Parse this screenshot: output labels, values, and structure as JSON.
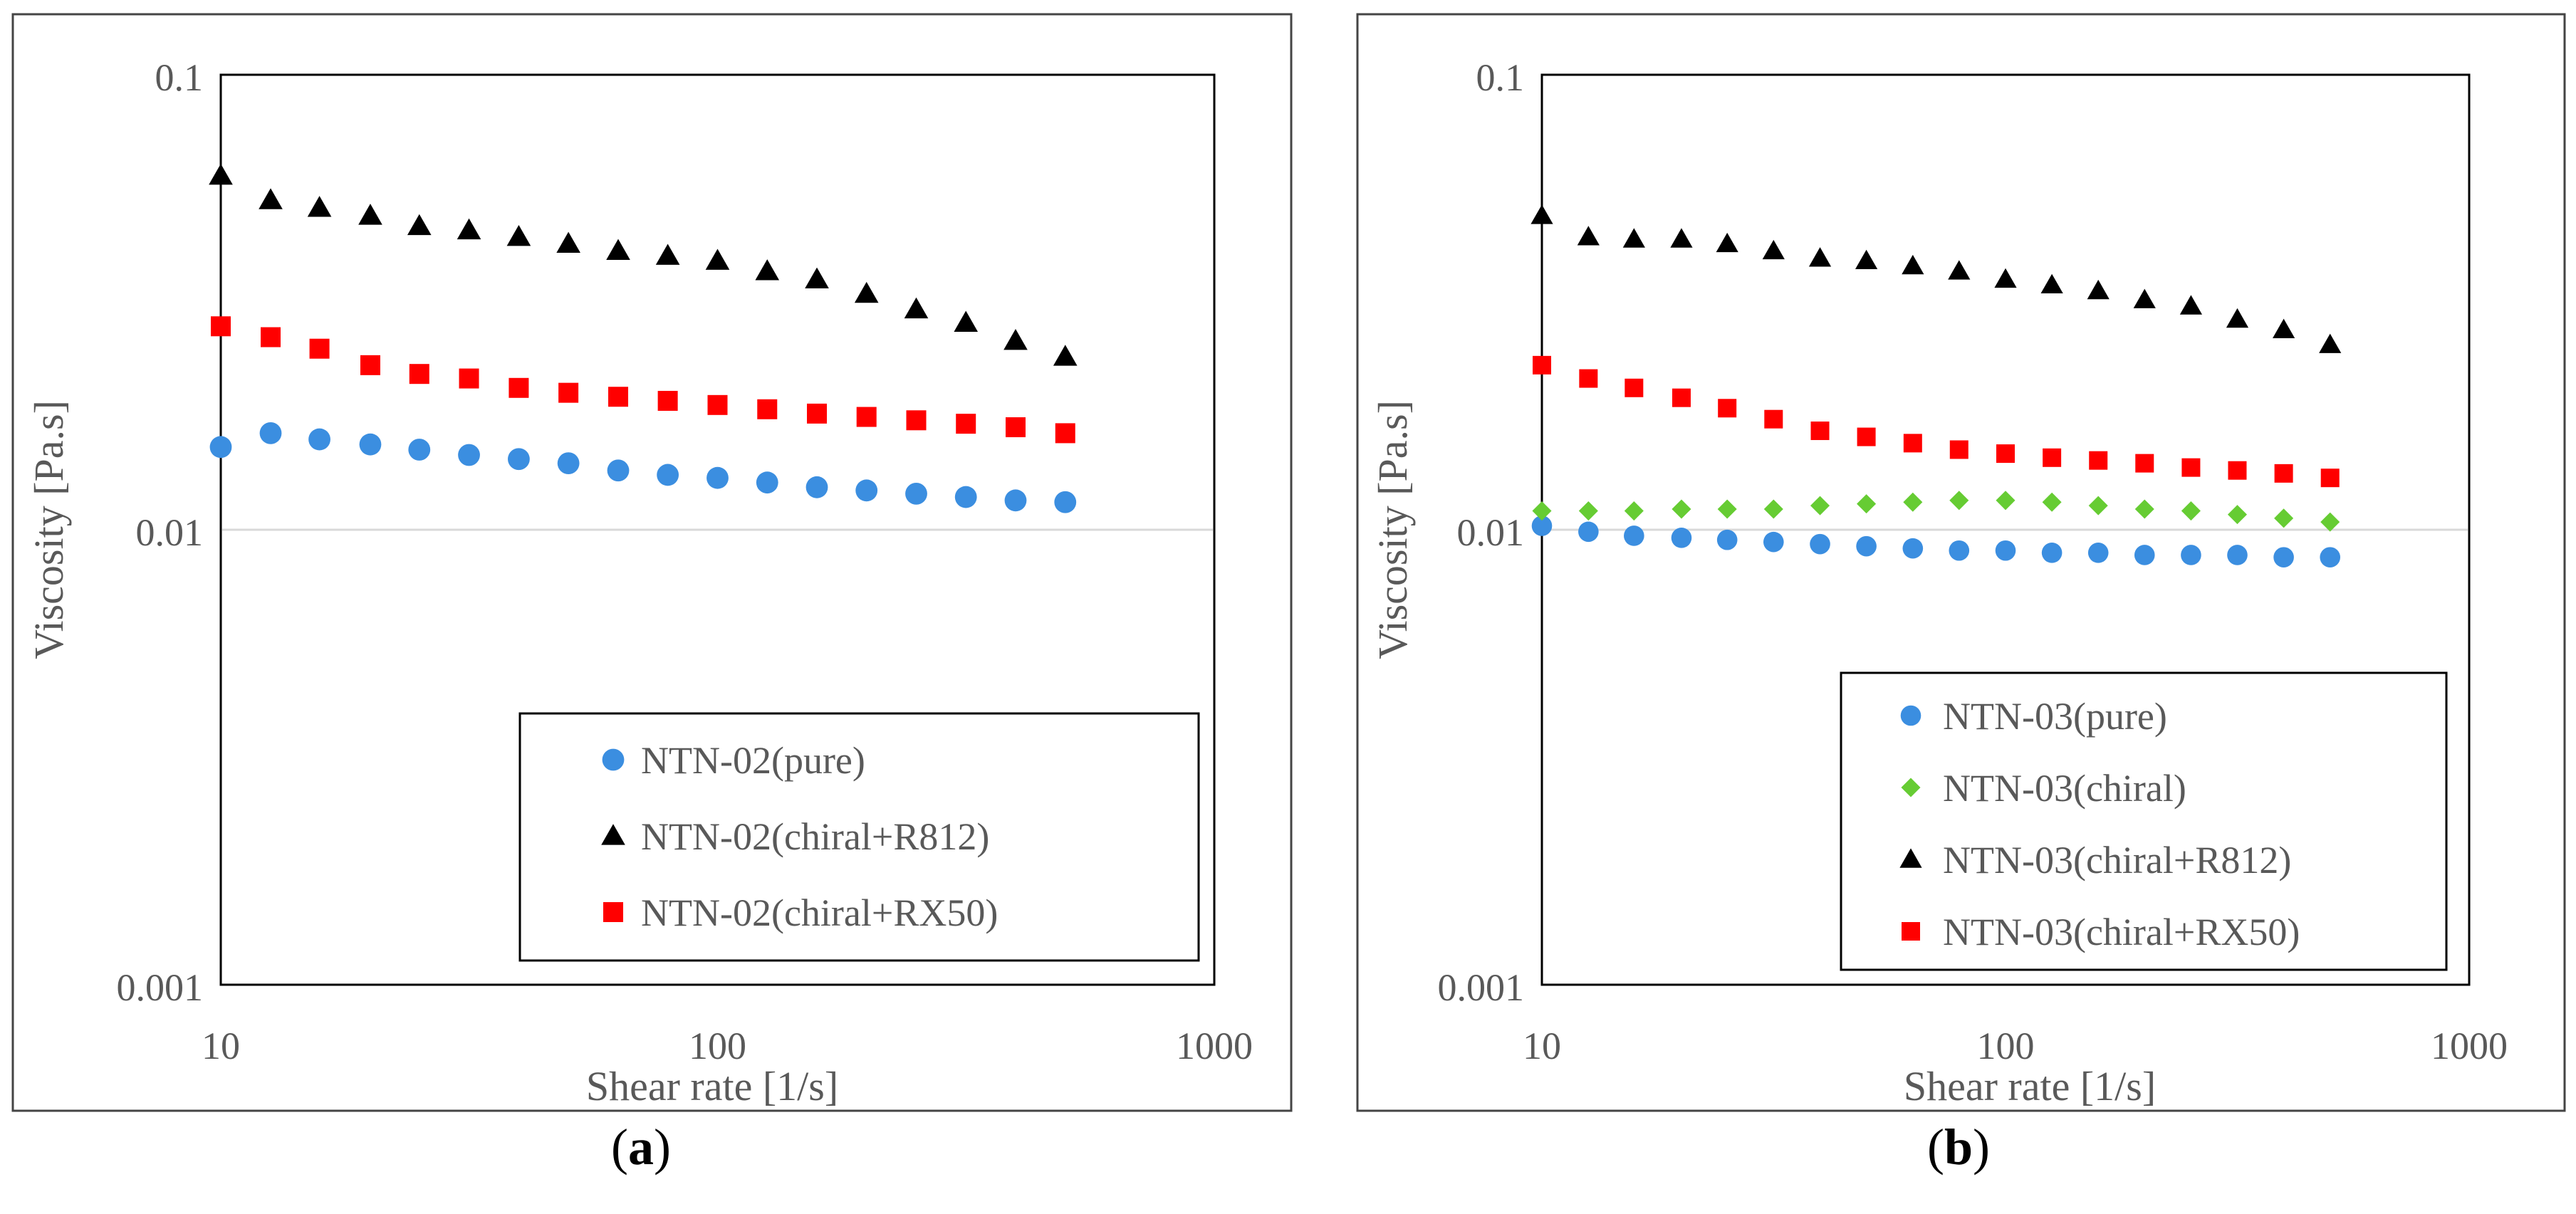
{
  "chart_data": [
    {
      "type": "scatter",
      "panel_label": "a",
      "title": "",
      "xlabel": "Shear rate [1/s]",
      "ylabel": "Viscosity [Pa.s]",
      "xscale": "log",
      "yscale": "log",
      "xlim": [
        10,
        1000
      ],
      "ylim": [
        0.001,
        0.1
      ],
      "x_ticks": [
        "10",
        "100",
        "1000"
      ],
      "y_ticks": [
        "0.1",
        "0.01",
        "0.001"
      ],
      "gridlines": [
        0.01
      ],
      "legend_position": "bottom-right",
      "x": [
        10,
        12.6,
        15.8,
        20,
        25.1,
        31.6,
        39.8,
        50.1,
        63.1,
        79.4,
        100,
        125.9,
        158.5,
        199.5,
        251.2,
        316.2,
        398.1,
        501.2
      ],
      "series": [
        {
          "name": "NTN-02(pure)",
          "marker": "circle",
          "color": "#3b8ee0",
          "values": [
            0.0152,
            0.0163,
            0.0158,
            0.0154,
            0.015,
            0.0146,
            0.0143,
            0.014,
            0.0135,
            0.0132,
            0.013,
            0.0127,
            0.0124,
            0.0122,
            0.012,
            0.0118,
            0.0116,
            0.0115
          ]
        },
        {
          "name": "NTN-02(chiral+R812)",
          "marker": "triangle",
          "color": "#000000",
          "values": [
            0.06,
            0.053,
            0.051,
            0.049,
            0.0465,
            0.0455,
            0.044,
            0.0425,
            0.041,
            0.04,
            0.039,
            0.037,
            0.0355,
            0.033,
            0.0305,
            0.0285,
            0.026,
            0.024
          ]
        },
        {
          "name": "NTN-02(chiral+RX50)",
          "marker": "square",
          "color": "#ff0000",
          "values": [
            0.028,
            0.0265,
            0.025,
            0.023,
            0.022,
            0.0215,
            0.0205,
            0.02,
            0.0196,
            0.0192,
            0.0188,
            0.0184,
            0.018,
            0.0177,
            0.0174,
            0.0171,
            0.0168,
            0.0163
          ]
        }
      ]
    },
    {
      "type": "scatter",
      "panel_label": "b",
      "title": "",
      "xlabel": "Shear rate [1/s]",
      "ylabel": "Viscosity [Pa.s]",
      "xscale": "log",
      "yscale": "log",
      "xlim": [
        10,
        1000
      ],
      "ylim": [
        0.001,
        0.1
      ],
      "x_ticks": [
        "10",
        "100",
        "1000"
      ],
      "y_ticks": [
        "0.1",
        "0.01",
        "0.001"
      ],
      "gridlines": [
        0.01
      ],
      "legend_position": "bottom-right",
      "x": [
        10,
        12.6,
        15.8,
        20,
        25.1,
        31.6,
        39.8,
        50.1,
        63.1,
        79.4,
        100,
        125.9,
        158.5,
        199.5,
        251.2,
        316.2,
        398.1,
        501.2
      ],
      "series": [
        {
          "name": "NTN-03(pure)",
          "marker": "circle",
          "color": "#3b8ee0",
          "values": [
            0.0102,
            0.0099,
            0.0097,
            0.0096,
            0.0095,
            0.0094,
            0.0093,
            0.0092,
            0.0091,
            0.009,
            0.009,
            0.0089,
            0.0089,
            0.0088,
            0.0088,
            0.0088,
            0.0087,
            0.0087
          ]
        },
        {
          "name": "NTN-03(chiral)",
          "marker": "diamond",
          "color": "#66cc33",
          "values": [
            0.011,
            0.011,
            0.011,
            0.0111,
            0.0111,
            0.0111,
            0.0113,
            0.0114,
            0.0115,
            0.0116,
            0.0116,
            0.0115,
            0.0113,
            0.0111,
            0.011,
            0.0108,
            0.0106,
            0.0104
          ]
        },
        {
          "name": "NTN-03(chiral+R812)",
          "marker": "triangle",
          "color": "#000000",
          "values": [
            0.049,
            0.044,
            0.0435,
            0.0435,
            0.0425,
            0.041,
            0.0395,
            0.039,
            0.038,
            0.037,
            0.0355,
            0.0345,
            0.0335,
            0.032,
            0.031,
            0.029,
            0.0275,
            0.0255
          ]
        },
        {
          "name": "NTN-03(chiral+RX50)",
          "marker": "square",
          "color": "#ff0000",
          "values": [
            0.023,
            0.0215,
            0.0205,
            0.0195,
            0.0185,
            0.0175,
            0.0165,
            0.016,
            0.0155,
            0.015,
            0.0147,
            0.0144,
            0.0142,
            0.014,
            0.0137,
            0.0135,
            0.0133,
            0.013
          ]
        }
      ]
    }
  ],
  "captions": [
    {
      "open": "(",
      "label": "a",
      "close": ")"
    },
    {
      "open": "(",
      "label": "b",
      "close": ")"
    }
  ]
}
